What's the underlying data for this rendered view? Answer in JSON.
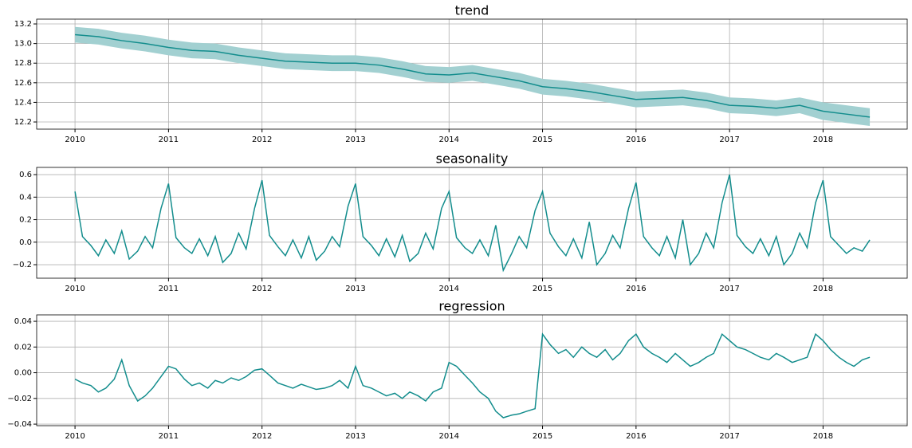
{
  "chart_data": [
    {
      "type": "line",
      "title": "trend",
      "color": "#138d8d",
      "band_color": "#a2d0d1",
      "grid": true,
      "x": [
        2010,
        2010.25,
        2010.5,
        2010.75,
        2011,
        2011.25,
        2011.5,
        2011.75,
        2012,
        2012.25,
        2012.5,
        2012.75,
        2013,
        2013.25,
        2013.5,
        2013.75,
        2014,
        2014.25,
        2014.5,
        2014.75,
        2015,
        2015.25,
        2015.5,
        2015.75,
        2016,
        2016.25,
        2016.5,
        2016.75,
        2017,
        2017.25,
        2017.5,
        2017.75,
        2018,
        2018.25,
        2018.5
      ],
      "values": [
        13.09,
        13.07,
        13.03,
        13.0,
        12.96,
        12.93,
        12.92,
        12.88,
        12.85,
        12.82,
        12.81,
        12.8,
        12.8,
        12.78,
        12.74,
        12.69,
        12.68,
        12.7,
        12.66,
        12.62,
        12.56,
        12.54,
        12.51,
        12.47,
        12.43,
        12.44,
        12.45,
        12.42,
        12.37,
        12.36,
        12.34,
        12.37,
        12.31,
        12.28,
        12.25
      ],
      "lower": [
        13.01,
        12.99,
        12.95,
        12.92,
        12.88,
        12.85,
        12.84,
        12.8,
        12.77,
        12.74,
        12.73,
        12.72,
        12.72,
        12.7,
        12.66,
        12.61,
        12.6,
        12.62,
        12.58,
        12.54,
        12.48,
        12.46,
        12.43,
        12.39,
        12.35,
        12.36,
        12.37,
        12.34,
        12.29,
        12.28,
        12.26,
        12.29,
        12.22,
        12.19,
        12.16
      ],
      "upper": [
        13.17,
        13.15,
        13.11,
        13.08,
        13.04,
        13.01,
        13.0,
        12.96,
        12.93,
        12.9,
        12.89,
        12.88,
        12.88,
        12.86,
        12.82,
        12.77,
        12.76,
        12.78,
        12.74,
        12.7,
        12.64,
        12.62,
        12.59,
        12.55,
        12.51,
        12.52,
        12.53,
        12.5,
        12.45,
        12.44,
        12.42,
        12.45,
        12.4,
        12.37,
        12.34
      ],
      "xlim": [
        2009.59,
        2018.9
      ],
      "xticks": [
        2010,
        2011,
        2012,
        2013,
        2014,
        2015,
        2016,
        2017,
        2018
      ],
      "ylim": [
        12.127,
        13.249
      ],
      "yticks": [
        12.2,
        12.4,
        12.6,
        12.8,
        {
          "value": 13,
          "label": "13.0"
        },
        13.2
      ]
    },
    {
      "type": "line",
      "title": "seasonality",
      "color": "#138d8d",
      "grid": true,
      "x": [
        2010,
        2010.08,
        2010.17,
        2010.25,
        2010.33,
        2010.42,
        2010.5,
        2010.58,
        2010.67,
        2010.75,
        2010.83,
        2010.92,
        2011,
        2011.08,
        2011.17,
        2011.25,
        2011.33,
        2011.42,
        2011.5,
        2011.58,
        2011.67,
        2011.75,
        2011.83,
        2011.92,
        2012,
        2012.08,
        2012.17,
        2012.25,
        2012.33,
        2012.42,
        2012.5,
        2012.58,
        2012.67,
        2012.75,
        2012.83,
        2012.92,
        2013,
        2013.08,
        2013.17,
        2013.25,
        2013.33,
        2013.42,
        2013.5,
        2013.58,
        2013.67,
        2013.75,
        2013.83,
        2013.92,
        2014,
        2014.08,
        2014.17,
        2014.25,
        2014.33,
        2014.42,
        2014.5,
        2014.58,
        2014.67,
        2014.75,
        2014.83,
        2014.92,
        2015,
        2015.08,
        2015.17,
        2015.25,
        2015.33,
        2015.42,
        2015.5,
        2015.58,
        2015.67,
        2015.75,
        2015.83,
        2015.92,
        2016,
        2016.08,
        2016.17,
        2016.25,
        2016.33,
        2016.42,
        2016.5,
        2016.58,
        2016.67,
        2016.75,
        2016.83,
        2016.92,
        2017,
        2017.08,
        2017.17,
        2017.25,
        2017.33,
        2017.42,
        2017.5,
        2017.58,
        2017.67,
        2017.75,
        2017.83,
        2017.92,
        2018,
        2018.08,
        2018.17,
        2018.25,
        2018.33,
        2018.42,
        2018.5
      ],
      "values": [
        0.45,
        0.05,
        -0.03,
        -0.12,
        0.02,
        -0.1,
        0.1,
        -0.15,
        -0.08,
        0.05,
        -0.05,
        0.3,
        0.52,
        0.04,
        -0.05,
        -0.1,
        0.03,
        -0.12,
        0.05,
        -0.18,
        -0.1,
        0.08,
        -0.06,
        0.3,
        0.55,
        0.06,
        -0.04,
        -0.12,
        0.02,
        -0.14,
        0.05,
        -0.16,
        -0.08,
        0.05,
        -0.04,
        0.32,
        0.52,
        0.05,
        -0.03,
        -0.12,
        0.03,
        -0.13,
        0.06,
        -0.17,
        -0.1,
        0.08,
        -0.06,
        0.3,
        0.45,
        0.04,
        -0.05,
        -0.1,
        0.02,
        -0.12,
        0.15,
        -0.25,
        -0.1,
        0.05,
        -0.05,
        0.28,
        0.45,
        0.08,
        -0.04,
        -0.12,
        0.03,
        -0.14,
        0.18,
        -0.2,
        -0.1,
        0.06,
        -0.05,
        0.3,
        0.53,
        0.05,
        -0.05,
        -0.12,
        0.05,
        -0.14,
        0.2,
        -0.2,
        -0.1,
        0.08,
        -0.05,
        0.35,
        0.6,
        0.06,
        -0.04,
        -0.1,
        0.03,
        -0.12,
        0.05,
        -0.2,
        -0.1,
        0.08,
        -0.05,
        0.35,
        0.55,
        0.05,
        -0.03,
        -0.1,
        -0.05,
        -0.08,
        0.02
      ],
      "xlim": [
        2009.59,
        2018.9
      ],
      "xticks": [
        2010,
        2011,
        2012,
        2013,
        2014,
        2015,
        2016,
        2017,
        2018
      ],
      "ylim": [
        -0.32,
        0.664
      ],
      "yticks": [
        {
          "value": -0.2,
          "label": "−0.2"
        },
        {
          "value": 0,
          "label": "0.0"
        },
        0.2,
        0.4,
        0.6
      ]
    },
    {
      "type": "line",
      "title": "regression",
      "color": "#138d8d",
      "grid": true,
      "x": [
        2010,
        2010.08,
        2010.17,
        2010.25,
        2010.33,
        2010.42,
        2010.5,
        2010.58,
        2010.67,
        2010.75,
        2010.83,
        2010.92,
        2011,
        2011.08,
        2011.17,
        2011.25,
        2011.33,
        2011.42,
        2011.5,
        2011.58,
        2011.67,
        2011.75,
        2011.83,
        2011.92,
        2012,
        2012.08,
        2012.17,
        2012.25,
        2012.33,
        2012.42,
        2012.5,
        2012.58,
        2012.67,
        2012.75,
        2012.83,
        2012.92,
        2013,
        2013.08,
        2013.17,
        2013.25,
        2013.33,
        2013.42,
        2013.5,
        2013.58,
        2013.67,
        2013.75,
        2013.83,
        2013.92,
        2014,
        2014.08,
        2014.17,
        2014.25,
        2014.33,
        2014.42,
        2014.5,
        2014.58,
        2014.67,
        2014.75,
        2014.83,
        2014.92,
        2015,
        2015.08,
        2015.17,
        2015.25,
        2015.33,
        2015.42,
        2015.5,
        2015.58,
        2015.67,
        2015.75,
        2015.83,
        2015.92,
        2016,
        2016.08,
        2016.17,
        2016.25,
        2016.33,
        2016.42,
        2016.5,
        2016.58,
        2016.67,
        2016.75,
        2016.83,
        2016.92,
        2017,
        2017.08,
        2017.17,
        2017.25,
        2017.33,
        2017.42,
        2017.5,
        2017.58,
        2017.67,
        2017.75,
        2017.83,
        2017.92,
        2018,
        2018.08,
        2018.17,
        2018.25,
        2018.33,
        2018.42,
        2018.5
      ],
      "values": [
        -0.005,
        -0.008,
        -0.01,
        -0.015,
        -0.012,
        -0.005,
        0.01,
        -0.01,
        -0.022,
        -0.018,
        -0.012,
        -0.003,
        0.005,
        0.003,
        -0.005,
        -0.01,
        -0.008,
        -0.012,
        -0.006,
        -0.008,
        -0.004,
        -0.006,
        -0.003,
        0.002,
        0.003,
        -0.002,
        -0.008,
        -0.01,
        -0.012,
        -0.009,
        -0.011,
        -0.013,
        -0.012,
        -0.01,
        -0.006,
        -0.012,
        0.005,
        -0.01,
        -0.012,
        -0.015,
        -0.018,
        -0.016,
        -0.02,
        -0.015,
        -0.018,
        -0.022,
        -0.015,
        -0.012,
        0.008,
        0.005,
        -0.002,
        -0.008,
        -0.015,
        -0.02,
        -0.03,
        -0.035,
        -0.033,
        -0.032,
        -0.03,
        -0.028,
        0.03,
        0.022,
        0.015,
        0.018,
        0.012,
        0.02,
        0.015,
        0.012,
        0.018,
        0.01,
        0.015,
        0.025,
        0.03,
        0.02,
        0.015,
        0.012,
        0.008,
        0.015,
        0.01,
        0.005,
        0.008,
        0.012,
        0.015,
        0.03,
        0.025,
        0.02,
        0.018,
        0.015,
        0.012,
        0.01,
        0.015,
        0.012,
        0.008,
        0.01,
        0.012,
        0.03,
        0.025,
        0.018,
        0.012,
        0.008,
        0.005,
        0.01,
        0.012
      ],
      "xlim": [
        2009.59,
        2018.9
      ],
      "xticks": [
        2010,
        2011,
        2012,
        2013,
        2014,
        2015,
        2016,
        2017,
        2018
      ],
      "ylim": [
        -0.0412,
        0.045
      ],
      "yticks": [
        {
          "value": -0.04,
          "label": "−0.04"
        },
        {
          "value": -0.02,
          "label": "−0.02"
        },
        {
          "value": 0,
          "label": "0.00"
        },
        0.02,
        0.04
      ]
    }
  ]
}
